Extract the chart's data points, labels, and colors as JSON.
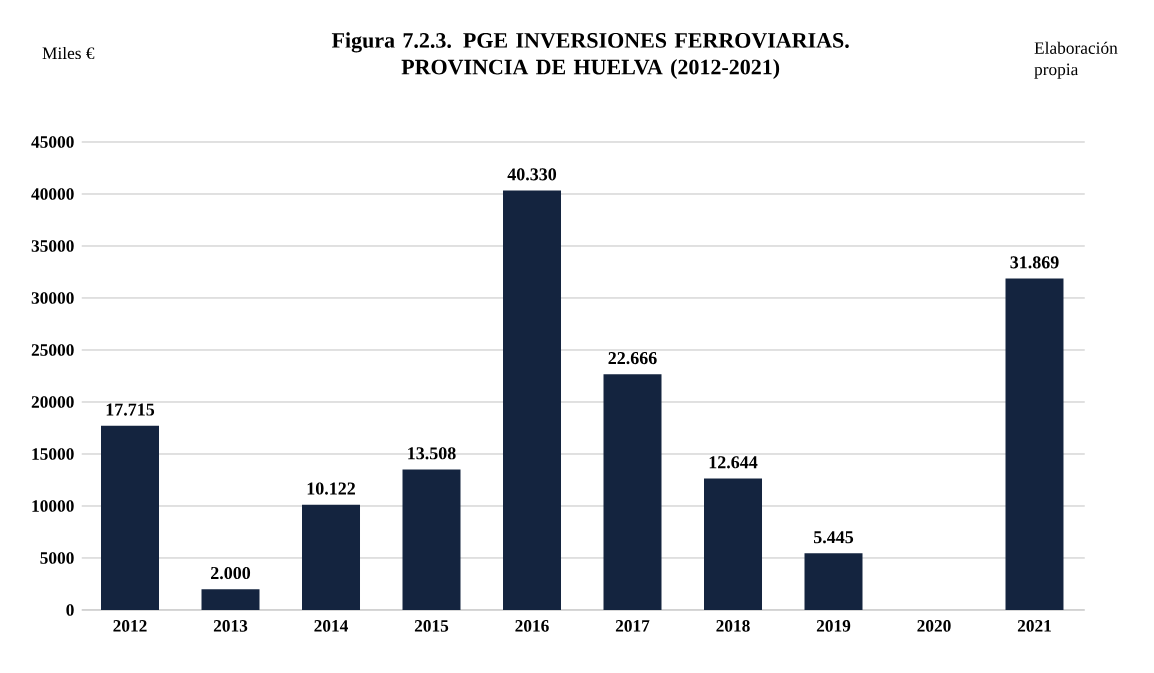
{
  "chart_data": {
    "type": "bar",
    "title": "Figura 7.2.3. PGE INVERSIONES FERROVIARIAS. PROVINCIA DE HUELVA (2012-2021)",
    "ylabel": "Miles €",
    "annotations": [
      "Elaboración propia"
    ],
    "categories": [
      "2012",
      "2013",
      "2014",
      "2015",
      "2016",
      "2017",
      "2018",
      "2019",
      "2020",
      "2021"
    ],
    "values": [
      17715,
      2000,
      10122,
      13508,
      40330,
      22666,
      12644,
      5445,
      null,
      31869
    ],
    "value_labels": [
      "17.715",
      "2.000",
      "10.122",
      "13.508",
      "40.330",
      "22.666",
      "12.644",
      "5.445",
      null,
      "31.869"
    ],
    "color": "#14243f",
    "ylim": [
      0,
      45000
    ],
    "yticks": [
      0,
      5000,
      10000,
      15000,
      20000,
      25000,
      30000,
      35000,
      40000,
      45000
    ],
    "grid": "y"
  }
}
